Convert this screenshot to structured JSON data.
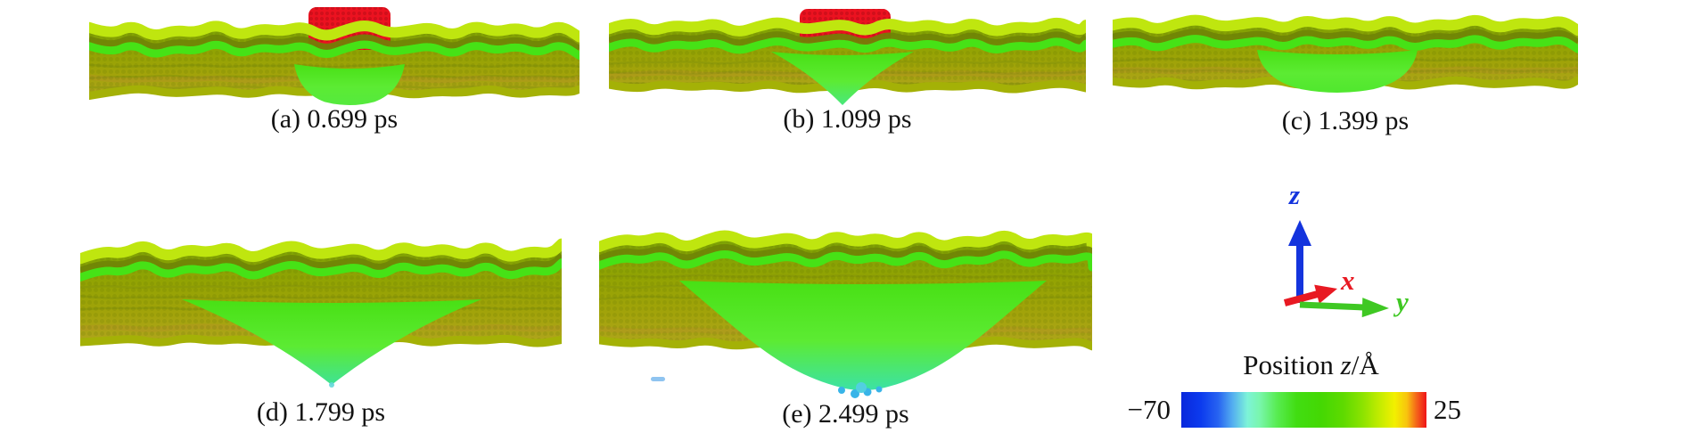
{
  "figure": {
    "panels": [
      {
        "id": "a",
        "label": "(a) 0.699 ps",
        "time": "0.699 ps",
        "has_projectile": true
      },
      {
        "id": "b",
        "label": "(b) 1.099 ps",
        "time": "1.099 ps",
        "has_projectile": true
      },
      {
        "id": "c",
        "label": "(c) 1.399 ps",
        "time": "1.399 ps",
        "has_projectile": false
      },
      {
        "id": "d",
        "label": "(d) 1.799 ps",
        "time": "1.799 ps",
        "has_projectile": false
      },
      {
        "id": "e",
        "label": "(e) 2.499 ps",
        "time": "2.499 ps",
        "has_projectile": false
      }
    ],
    "axes": {
      "x_label": "x",
      "y_label": "y",
      "z_label": "z",
      "x_color": "#e81922",
      "y_color": "#3fc823",
      "z_color": "#1434dd"
    },
    "colorbar": {
      "title_prefix": "Position ",
      "title_var": "z",
      "title_unit": "/Å",
      "min_label": "−70",
      "max_label": "25",
      "min_value": -70,
      "max_value": 25,
      "colormap": "blue-cyan-green-yellow-red (jet-like)"
    },
    "palette": {
      "surface_rim": "#bfe60f",
      "surface_body": "#93a303",
      "crater_green": "#48e014",
      "projectile_red": "#ec1220",
      "deep_cyan": "#38b4e8"
    }
  }
}
